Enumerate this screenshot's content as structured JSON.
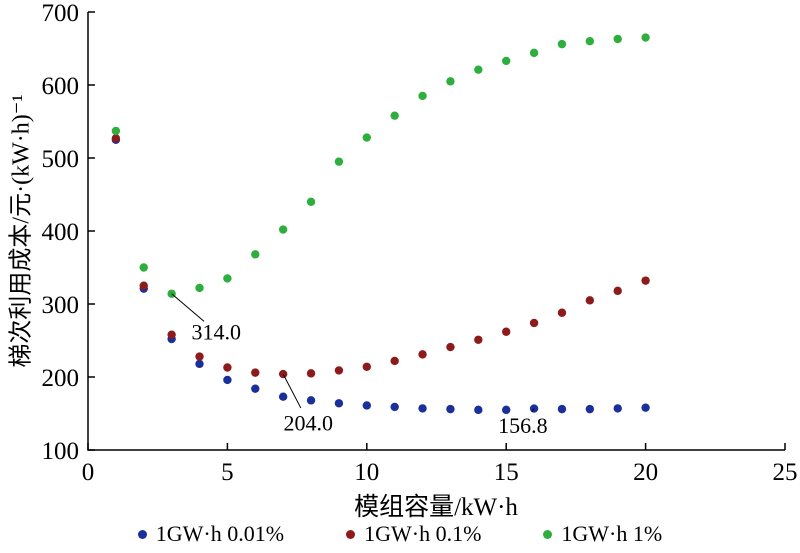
{
  "chart_data": {
    "type": "scatter",
    "title": "",
    "xlabel": "模组容量/kW·h",
    "ylabel": "梯次利用成本/元·(kW·h)⁻¹",
    "xlim": [
      0,
      25
    ],
    "ylim": [
      100,
      700
    ],
    "xticks": [
      0,
      5,
      10,
      15,
      20,
      25
    ],
    "yticks": [
      100,
      200,
      300,
      400,
      500,
      600,
      700
    ],
    "grid": false,
    "legend_position": "bottom",
    "x": [
      1,
      2,
      3,
      4,
      5,
      6,
      7,
      8,
      9,
      10,
      11,
      12,
      13,
      14,
      15,
      16,
      17,
      18,
      19,
      20
    ],
    "series": [
      {
        "name": "1GW·h 0.01%",
        "color": "#1b2f9b",
        "values": [
          525,
          321,
          252,
          218,
          196,
          184,
          173,
          168,
          164,
          161,
          159,
          157,
          156,
          155,
          155,
          156.8,
          156,
          156,
          157,
          158
        ]
      },
      {
        "name": "1GW·h 0.1%",
        "color": "#8e1b1b",
        "values": [
          527,
          325,
          258,
          228,
          213,
          206,
          204,
          205,
          209,
          214,
          222,
          231,
          241,
          251,
          262,
          274,
          288,
          305,
          318,
          332
        ]
      },
      {
        "name": "1GW·h 1%",
        "color": "#2eae3c",
        "values": [
          537,
          350,
          314,
          322,
          335,
          368,
          402,
          440,
          495,
          528,
          558,
          585,
          605,
          621,
          633,
          644,
          656,
          660,
          663,
          665
        ]
      }
    ],
    "annotations": [
      {
        "text": "314.0",
        "point": {
          "x": 3,
          "y": 314
        },
        "label": {
          "x": 4.6,
          "y": 262
        }
      },
      {
        "text": "204.0",
        "point": {
          "x": 7,
          "y": 204
        },
        "label": {
          "x": 7.9,
          "y": 138
        }
      },
      {
        "text": "156.8",
        "point": {
          "x": 16,
          "y": 156.8
        },
        "label": {
          "x": 15.6,
          "y": 134
        }
      }
    ]
  }
}
